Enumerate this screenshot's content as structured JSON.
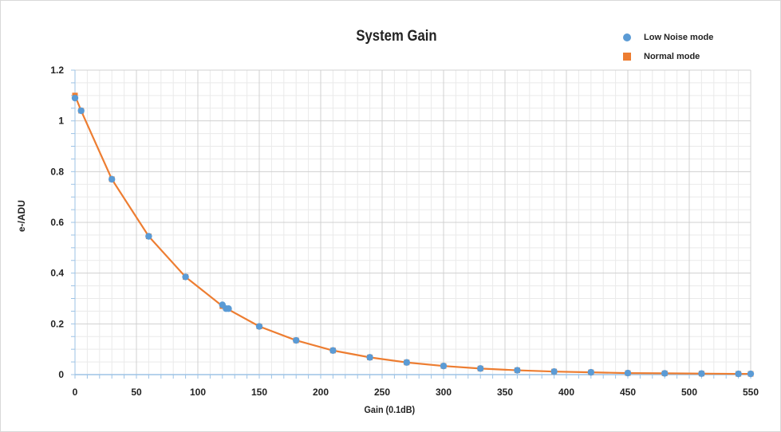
{
  "chart_data": {
    "type": "scatter",
    "title": "System Gain",
    "xlabel": "Gain (0.1dB)",
    "ylabel": "e-/ADU",
    "xlim": [
      0,
      550
    ],
    "ylim": [
      0,
      1.2
    ],
    "x_ticks": [
      "0",
      "50",
      "100",
      "150",
      "200",
      "250",
      "300",
      "350",
      "400",
      "450",
      "500",
      "550"
    ],
    "y_ticks": [
      "0",
      "0.2",
      "0.4",
      "0.6",
      "0.8",
      "1",
      "1.2"
    ],
    "grid": true,
    "legend_position": "top-right",
    "series": [
      {
        "name": "Low Noise mode",
        "marker": "circle",
        "color": "#5b9bd5",
        "x": [
          0,
          5,
          30,
          60,
          90,
          120,
          123,
          125,
          150,
          180,
          210,
          240,
          270,
          300,
          330,
          360,
          390,
          420,
          450,
          480,
          510,
          540,
          550
        ],
        "y": [
          1.09,
          1.04,
          0.77,
          0.545,
          0.385,
          0.275,
          0.26,
          0.26,
          0.19,
          0.135,
          0.095,
          0.068,
          0.048,
          0.034,
          0.024,
          0.017,
          0.012,
          0.009,
          0.006,
          0.005,
          0.004,
          0.003,
          0.003
        ]
      },
      {
        "name": "Normal mode",
        "marker": "square",
        "color": "#ed7d31",
        "x": [
          0,
          5,
          30,
          60,
          90,
          120,
          150,
          180,
          210,
          240,
          270,
          300,
          330,
          360,
          390,
          420,
          450,
          480,
          510,
          540,
          550
        ],
        "y": [
          1.1,
          1.04,
          0.77,
          0.545,
          0.385,
          0.27,
          0.19,
          0.135,
          0.095,
          0.068,
          0.048,
          0.034,
          0.024,
          0.017,
          0.012,
          0.009,
          0.006,
          0.005,
          0.004,
          0.003,
          0.003
        ]
      }
    ]
  }
}
